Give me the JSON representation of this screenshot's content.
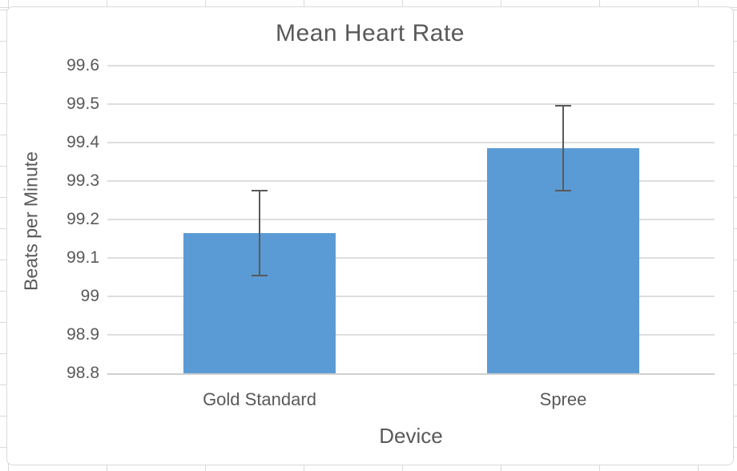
{
  "chart_data": {
    "type": "bar",
    "title": "Mean Heart Rate",
    "xlabel": "Device",
    "ylabel": "Beats per Minute",
    "categories": [
      "Gold Standard",
      "Spree"
    ],
    "values": [
      99.165,
      99.385
    ],
    "error_low": [
      99.055,
      99.275
    ],
    "error_high": [
      99.275,
      99.495
    ],
    "ylim": [
      98.8,
      99.6
    ],
    "ytick_labels": [
      "99.6",
      "99.5",
      "99.4",
      "99.3",
      "99.2",
      "99.1",
      "99",
      "98.9",
      "98.8"
    ],
    "ytick_values": [
      99.6,
      99.5,
      99.4,
      99.3,
      99.2,
      99.1,
      99.0,
      98.9,
      98.8
    ],
    "grid": true,
    "legend_position": "none",
    "colors": {
      "bar": "#5B9BD5",
      "error_bar": "#595959",
      "text": "#595959",
      "gridline": "#dedede",
      "axis_line": "#cfcfcf",
      "chart_border": "#d9d9d9",
      "sheet_gridline": "#d9d9d9"
    }
  }
}
